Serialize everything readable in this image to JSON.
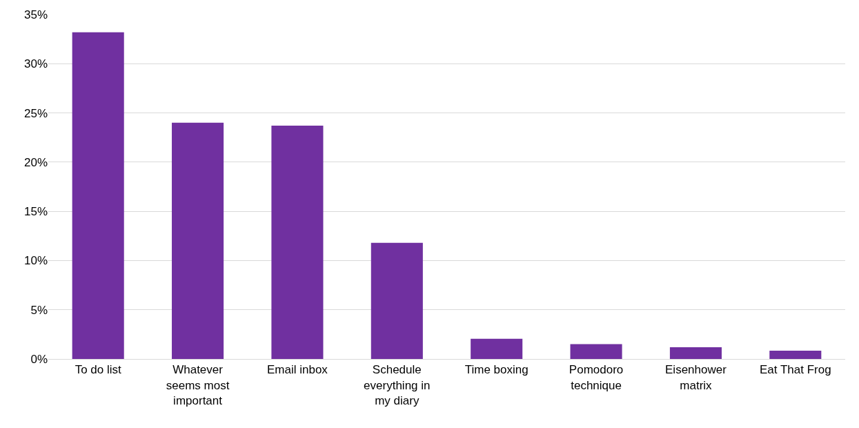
{
  "chart_data": {
    "type": "bar",
    "categories": [
      "To do list",
      "Whatever seems most important",
      "Email inbox",
      "Schedule everything in my diary",
      "Time boxing",
      "Pomodoro technique",
      "Eisenhower matrix",
      "Eat That Frog"
    ],
    "values": [
      33.2,
      24.0,
      23.7,
      11.8,
      2.05,
      1.5,
      1.2,
      0.85
    ],
    "color": "#7030a0",
    "ylim": [
      0,
      35
    ],
    "yticks": [
      {
        "value": 0,
        "label": "0%"
      },
      {
        "value": 5,
        "label": "5%"
      },
      {
        "value": 10,
        "label": "10%"
      },
      {
        "value": 15,
        "label": "15%"
      },
      {
        "value": 20,
        "label": "20%"
      },
      {
        "value": 25,
        "label": "25%"
      },
      {
        "value": 30,
        "label": "30%"
      },
      {
        "value": 35,
        "label": "35%"
      }
    ],
    "grid": "y"
  }
}
